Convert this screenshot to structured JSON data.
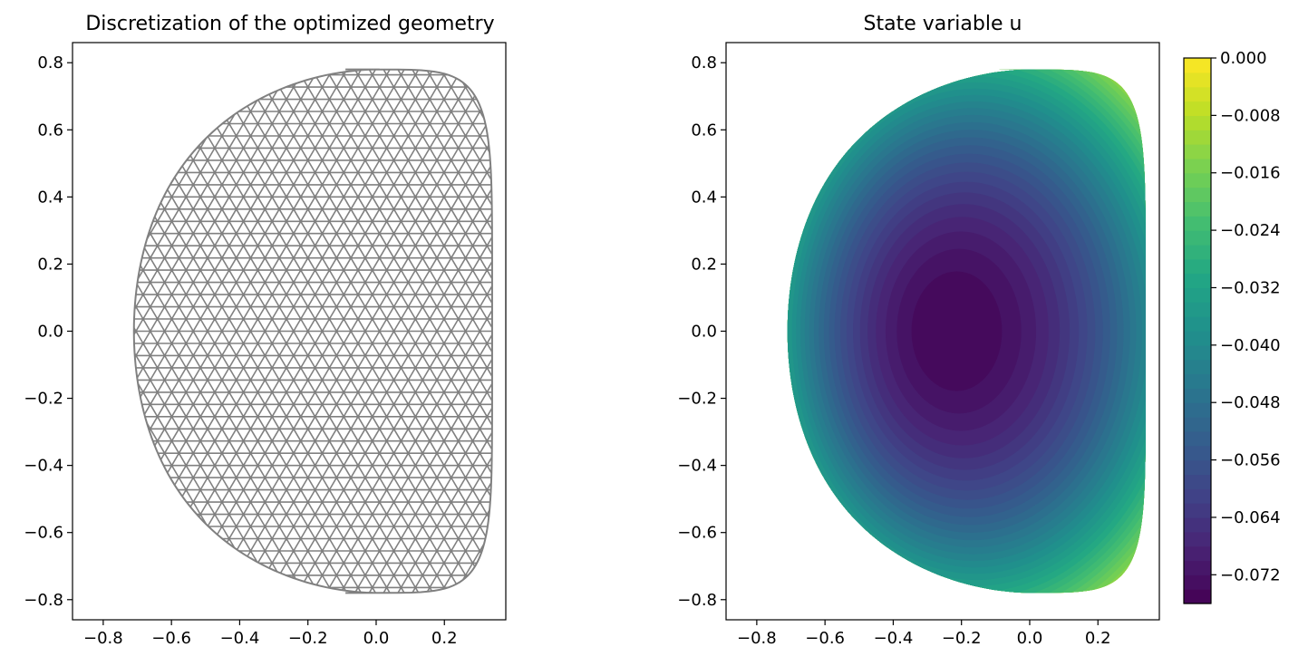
{
  "chart_data": [
    {
      "type": "mesh",
      "title": "Discretization of the optimized geometry",
      "xlabel": "",
      "ylabel": "",
      "xlim": [
        -0.89,
        0.38
      ],
      "ylim": [
        -0.86,
        0.86
      ],
      "xticks": [
        -0.8,
        -0.6,
        -0.4,
        -0.2,
        0.0,
        0.2
      ],
      "xtick_labels": [
        "−0.8",
        "−0.6",
        "−0.4",
        "−0.2",
        "0.0",
        "0.2"
      ],
      "yticks": [
        -0.8,
        -0.6,
        -0.4,
        -0.2,
        0.0,
        0.2,
        0.4,
        0.6,
        0.8
      ],
      "ytick_labels": [
        "−0.8",
        "−0.6",
        "−0.4",
        "−0.2",
        "0.0",
        "0.2",
        "0.4",
        "0.6",
        "0.8"
      ],
      "domain_extent": {
        "x": [
          -0.83,
          0.34
        ],
        "y": [
          -0.78,
          0.78
        ]
      },
      "mesh_color": "#808080",
      "element": "triangle",
      "grid": false
    },
    {
      "type": "heatmap",
      "title": "State variable u",
      "xlabel": "",
      "ylabel": "",
      "xlim": [
        -0.89,
        0.38
      ],
      "ylim": [
        -0.86,
        0.86
      ],
      "xticks": [
        -0.8,
        -0.6,
        -0.4,
        -0.2,
        0.0,
        0.2
      ],
      "xtick_labels": [
        "−0.8",
        "−0.6",
        "−0.4",
        "−0.2",
        "0.0",
        "0.2"
      ],
      "yticks": [
        -0.8,
        -0.6,
        -0.4,
        -0.2,
        0.0,
        0.2,
        0.4,
        0.6,
        0.8
      ],
      "ytick_labels": [
        "−0.8",
        "−0.6",
        "−0.4",
        "−0.2",
        "0.0",
        "0.2",
        "0.4",
        "0.6",
        "0.8"
      ],
      "colormap": "viridis",
      "min_value": -0.076,
      "min_location": [
        -0.23,
        0.0
      ],
      "max_value": 0.0,
      "colorbar": {
        "range": [
          -0.076,
          0.0
        ],
        "ticks": [
          0.0,
          -0.008,
          -0.016,
          -0.024,
          -0.032,
          -0.04,
          -0.048,
          -0.056,
          -0.064,
          -0.072
        ],
        "tick_labels": [
          "0.000",
          "−0.008",
          "−0.016",
          "−0.024",
          "−0.032",
          "−0.040",
          "−0.048",
          "−0.056",
          "−0.064",
          "−0.072"
        ],
        "levels": 38
      },
      "grid": false
    }
  ]
}
